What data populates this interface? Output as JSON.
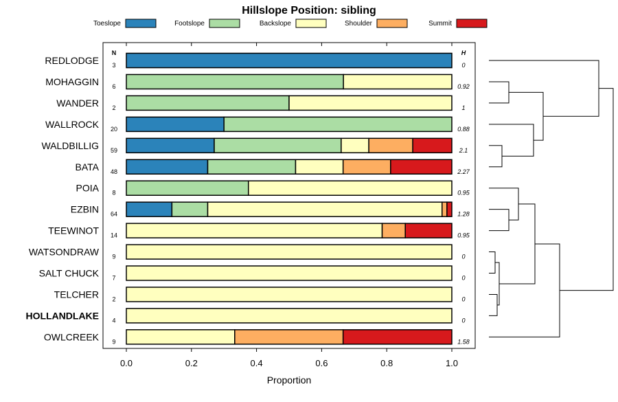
{
  "chart_data": {
    "type": "bar",
    "stacked": true,
    "orientation": "horizontal",
    "title": "Hillslope Position: sibling",
    "xlabel": "Proportion",
    "xlim": [
      0,
      1
    ],
    "x_ticks": [
      "0.0",
      "0.2",
      "0.4",
      "0.6",
      "0.8",
      "1.0"
    ],
    "n_header": "N",
    "h_header": "H",
    "legend": [
      {
        "name": "Toeslope",
        "color": "#2b83ba"
      },
      {
        "name": "Footslope",
        "color": "#abdda4"
      },
      {
        "name": "Backslope",
        "color": "#ffffbf"
      },
      {
        "name": "Shoulder",
        "color": "#fdae61"
      },
      {
        "name": "Summit",
        "color": "#d7191c"
      }
    ],
    "rows": [
      {
        "label": "REDLODGE",
        "n": "3",
        "h": "0",
        "values": [
          1,
          0,
          0,
          0,
          0
        ],
        "bold": false
      },
      {
        "label": "MOHAGGIN",
        "n": "6",
        "h": "0.92",
        "values": [
          0,
          0.667,
          0.333,
          0,
          0
        ],
        "bold": false
      },
      {
        "label": "WANDER",
        "n": "2",
        "h": "1",
        "values": [
          0,
          0.5,
          0.5,
          0,
          0
        ],
        "bold": false
      },
      {
        "label": "WALLROCK",
        "n": "20",
        "h": "0.88",
        "values": [
          0.3,
          0.7,
          0,
          0,
          0
        ],
        "bold": false
      },
      {
        "label": "WALDBILLIG",
        "n": "59",
        "h": "2.1",
        "values": [
          0.27,
          0.39,
          0.085,
          0.135,
          0.12
        ],
        "bold": false
      },
      {
        "label": "BATA",
        "n": "48",
        "h": "2.27",
        "values": [
          0.25,
          0.27,
          0.146,
          0.146,
          0.188
        ],
        "bold": false
      },
      {
        "label": "POIA",
        "n": "8",
        "h": "0.95",
        "values": [
          0,
          0.375,
          0.625,
          0,
          0
        ],
        "bold": false
      },
      {
        "label": "EZBIN",
        "n": "64",
        "h": "1.28",
        "values": [
          0.14,
          0.11,
          0.72,
          0.015,
          0.015
        ],
        "bold": false
      },
      {
        "label": "TEEWINOT",
        "n": "14",
        "h": "0.95",
        "values": [
          0,
          0,
          0.786,
          0.071,
          0.143
        ],
        "bold": false
      },
      {
        "label": "WATSONDRAW",
        "n": "9",
        "h": "0",
        "values": [
          0,
          0,
          1,
          0,
          0
        ],
        "bold": false
      },
      {
        "label": "SALT CHUCK",
        "n": "7",
        "h": "0",
        "values": [
          0,
          0,
          1,
          0,
          0
        ],
        "bold": false
      },
      {
        "label": "TELCHER",
        "n": "2",
        "h": "0",
        "values": [
          0,
          0,
          1,
          0,
          0
        ],
        "bold": false
      },
      {
        "label": "HOLLANDLAKE",
        "n": "4",
        "h": "0",
        "values": [
          0,
          0,
          1,
          0,
          0
        ],
        "bold": true
      },
      {
        "label": "OWLCREEK",
        "n": "9",
        "h": "1.58",
        "values": [
          0,
          0,
          0.333,
          0.333,
          0.334
        ],
        "bold": false
      }
    ]
  }
}
